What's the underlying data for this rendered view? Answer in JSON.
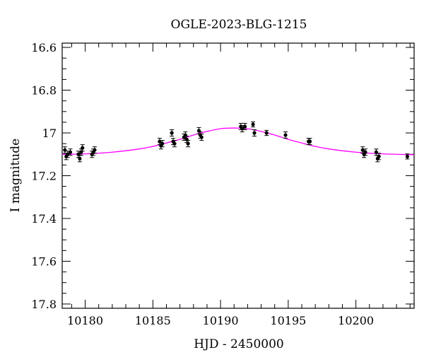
{
  "chart_data": {
    "type": "scatter",
    "title": "OGLE-2023-BLG-1215",
    "xlabel": "HJD - 2450000",
    "ylabel": "I magnitude",
    "xlim": [
      10178.3,
      10204.3
    ],
    "ylim": [
      17.82,
      16.58
    ],
    "y_inverted": true,
    "grid": false,
    "xticks_major": [
      10180,
      10185,
      10190,
      10195,
      10200
    ],
    "xtick_labels": [
      "10180",
      "10185",
      "10190",
      "10195",
      "10200"
    ],
    "xtick_minor_step": 1,
    "yticks_major": [
      16.6,
      16.8,
      17.0,
      17.2,
      17.4,
      17.6,
      17.8
    ],
    "ytick_labels": [
      "16.6",
      "16.8",
      "17",
      "17.2",
      "17.4",
      "17.6",
      "17.8"
    ],
    "ytick_minor_step": 0.05,
    "series": [
      {
        "kind": "points",
        "color": "#000000",
        "x": [
          10178.5,
          10178.6,
          10178.7,
          10178.9,
          10179.5,
          10179.6,
          10179.7,
          10179.8,
          10180.5,
          10180.6,
          10180.7,
          10185.5,
          10185.6,
          10185.7,
          10186.4,
          10186.5,
          10186.6,
          10187.3,
          10187.4,
          10187.5,
          10187.6,
          10188.4,
          10188.5,
          10188.6,
          10191.5,
          10191.6,
          10191.8,
          10192.4,
          10192.5,
          10193.4,
          10194.8,
          10196.5,
          10196.6,
          10200.5,
          10200.6,
          10200.7,
          10201.5,
          10201.6,
          10201.7,
          10203.8
        ],
        "y": [
          17.08,
          17.11,
          17.1,
          17.09,
          17.1,
          17.12,
          17.09,
          17.07,
          17.1,
          17.09,
          17.08,
          17.04,
          17.06,
          17.05,
          17.0,
          17.04,
          17.05,
          17.02,
          17.01,
          17.03,
          17.05,
          16.99,
          17.01,
          17.02,
          16.97,
          16.98,
          16.97,
          16.96,
          17.0,
          17.0,
          17.01,
          17.04,
          17.04,
          17.08,
          17.1,
          17.09,
          17.09,
          17.12,
          17.11,
          17.11
        ],
        "err": [
          0.015,
          0.015,
          0.015,
          0.015,
          0.015,
          0.015,
          0.015,
          0.015,
          0.015,
          0.015,
          0.015,
          0.015,
          0.015,
          0.015,
          0.015,
          0.015,
          0.015,
          0.015,
          0.015,
          0.015,
          0.015,
          0.015,
          0.015,
          0.015,
          0.015,
          0.015,
          0.015,
          0.012,
          0.015,
          0.012,
          0.015,
          0.015,
          0.015,
          0.015,
          0.015,
          0.015,
          0.015,
          0.015,
          0.015,
          0.012
        ]
      },
      {
        "kind": "model-line",
        "color": "#ff00ff",
        "x": [
          10178.3,
          10180,
          10182,
          10184,
          10185,
          10186,
          10187,
          10188,
          10189,
          10190,
          10191,
          10192,
          10193,
          10194,
          10195,
          10196,
          10197,
          10198,
          10200,
          10202,
          10204.3
        ],
        "y": [
          17.1,
          17.098,
          17.09,
          17.075,
          17.063,
          17.047,
          17.03,
          17.01,
          16.993,
          16.98,
          16.977,
          16.98,
          16.993,
          17.01,
          17.03,
          17.047,
          17.063,
          17.075,
          17.09,
          17.098,
          17.102
        ]
      }
    ]
  }
}
